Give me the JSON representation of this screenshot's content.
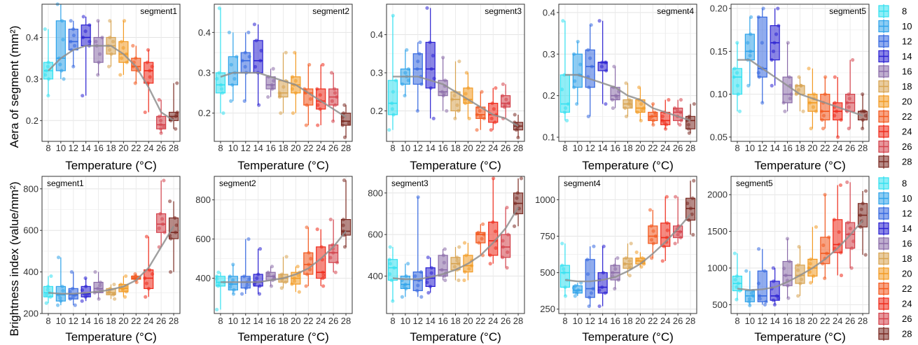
{
  "temperatures": [
    "8",
    "10",
    "12",
    "14",
    "16",
    "18",
    "20",
    "22",
    "24",
    "26",
    "28"
  ],
  "colors": [
    "#33e0f0",
    "#2fa3ea",
    "#3568e0",
    "#2a20d2",
    "#8a6ba8",
    "#d7a350",
    "#f29a22",
    "#f2581d",
    "#ef2a1a",
    "#d3414b",
    "#7a2a22"
  ],
  "xlabel": "Temperature (°C)",
  "row_labels": [
    "Aera of segment (mm²)",
    "Brightness index (value/mm²)"
  ],
  "legend_titles": [
    "",
    ""
  ],
  "chart_data": [
    {
      "type": "box",
      "row": 0,
      "segment": "segment1",
      "xlabel": "Temperature (°C)",
      "ylabel": "Aera of segment (mm²)",
      "ylim": [
        0.15,
        0.48
      ],
      "yticks": [
        0.2,
        0.3,
        0.4
      ],
      "ytick_labels": [
        "0.2",
        "0.3",
        "0.4"
      ],
      "medians": [
        0.32,
        0.35,
        0.39,
        0.4,
        0.38,
        0.38,
        0.36,
        0.33,
        0.32,
        0.19,
        0.21
      ],
      "q1": [
        0.3,
        0.32,
        0.37,
        0.38,
        0.34,
        0.36,
        0.34,
        0.32,
        0.29,
        0.18,
        0.2
      ],
      "q3": [
        0.34,
        0.44,
        0.42,
        0.43,
        0.4,
        0.4,
        0.39,
        0.35,
        0.34,
        0.21,
        0.22
      ],
      "wlo": [
        0.26,
        0.3,
        0.33,
        0.26,
        0.31,
        0.33,
        0.31,
        0.29,
        0.22,
        0.17,
        0.18
      ],
      "whi": [
        0.42,
        0.48,
        0.44,
        0.45,
        0.44,
        0.44,
        0.44,
        0.38,
        0.37,
        0.25,
        0.29
      ],
      "trend": [
        0.32,
        0.35,
        0.37,
        0.38,
        0.38,
        0.38,
        0.36,
        0.33,
        0.28,
        0.22,
        0.2
      ]
    },
    {
      "type": "box",
      "row": 0,
      "segment": "segment2",
      "xlabel": "Temperature (°C)",
      "ylabel": "",
      "ylim": [
        0.13,
        0.47
      ],
      "yticks": [
        0.2,
        0.3,
        0.4
      ],
      "ytick_labels": [
        "0.2",
        "0.3",
        "0.4"
      ],
      "medians": [
        0.27,
        0.3,
        0.33,
        0.33,
        0.27,
        0.25,
        0.27,
        0.25,
        0.23,
        0.24,
        0.18
      ],
      "q1": [
        0.25,
        0.27,
        0.3,
        0.3,
        0.26,
        0.24,
        0.25,
        0.22,
        0.21,
        0.22,
        0.17
      ],
      "q3": [
        0.3,
        0.34,
        0.35,
        0.38,
        0.29,
        0.28,
        0.29,
        0.26,
        0.26,
        0.26,
        0.2
      ],
      "wlo": [
        0.2,
        0.23,
        0.23,
        0.22,
        0.24,
        0.2,
        0.2,
        0.17,
        0.17,
        0.18,
        0.14
      ],
      "whi": [
        0.46,
        0.4,
        0.4,
        0.42,
        0.31,
        0.35,
        0.35,
        0.32,
        0.32,
        0.3,
        0.22
      ],
      "trend": [
        0.29,
        0.3,
        0.3,
        0.3,
        0.29,
        0.28,
        0.27,
        0.25,
        0.23,
        0.21,
        0.19
      ]
    },
    {
      "type": "box",
      "row": 0,
      "segment": "segment3",
      "xlabel": "Temperature (°C)",
      "ylabel": "",
      "ylim": [
        0.12,
        0.48
      ],
      "yticks": [
        0.2,
        0.3,
        0.4
      ],
      "ytick_labels": [
        "0.2",
        "0.3",
        "0.4"
      ],
      "medians": [
        0.22,
        0.29,
        0.31,
        0.31,
        0.25,
        0.23,
        0.23,
        0.19,
        0.19,
        0.22,
        0.16
      ],
      "q1": [
        0.19,
        0.27,
        0.27,
        0.26,
        0.24,
        0.2,
        0.22,
        0.18,
        0.17,
        0.21,
        0.15
      ],
      "q3": [
        0.28,
        0.31,
        0.35,
        0.38,
        0.28,
        0.25,
        0.26,
        0.21,
        0.22,
        0.24,
        0.17
      ],
      "wlo": [
        0.15,
        0.24,
        0.2,
        0.18,
        0.2,
        0.18,
        0.18,
        0.15,
        0.15,
        0.18,
        0.13
      ],
      "whi": [
        0.45,
        0.36,
        0.38,
        0.47,
        0.34,
        0.33,
        0.3,
        0.25,
        0.26,
        0.27,
        0.19
      ],
      "trend": [
        0.29,
        0.29,
        0.29,
        0.28,
        0.27,
        0.25,
        0.23,
        0.21,
        0.19,
        0.18,
        0.16
      ]
    },
    {
      "type": "box",
      "row": 0,
      "segment": "segment4",
      "xlabel": "Temperature (°C)",
      "ylabel": "",
      "ylim": [
        0.09,
        0.42
      ],
      "yticks": [
        0.1,
        0.2,
        0.3,
        0.4
      ],
      "ytick_labels": [
        "0.1",
        "0.2",
        "0.3",
        "0.4"
      ],
      "medians": [
        0.18,
        0.25,
        0.27,
        0.28,
        0.2,
        0.18,
        0.17,
        0.15,
        0.14,
        0.16,
        0.14
      ],
      "q1": [
        0.16,
        0.22,
        0.22,
        0.26,
        0.19,
        0.17,
        0.16,
        0.14,
        0.13,
        0.14,
        0.12
      ],
      "q3": [
        0.25,
        0.3,
        0.31,
        0.28,
        0.22,
        0.19,
        0.19,
        0.16,
        0.16,
        0.17,
        0.15
      ],
      "wlo": [
        0.14,
        0.18,
        0.15,
        0.18,
        0.17,
        0.15,
        0.14,
        0.13,
        0.12,
        0.13,
        0.11
      ],
      "whi": [
        0.38,
        0.33,
        0.37,
        0.38,
        0.27,
        0.23,
        0.22,
        0.18,
        0.19,
        0.19,
        0.18
      ],
      "trend": [
        0.25,
        0.25,
        0.24,
        0.23,
        0.22,
        0.2,
        0.19,
        0.17,
        0.16,
        0.15,
        0.14
      ]
    },
    {
      "type": "box",
      "row": 0,
      "segment": "segment5",
      "xlabel": "Temperature (°C)",
      "ylabel": "",
      "ylim": [
        0.045,
        0.205
      ],
      "yticks": [
        0.05,
        0.1,
        0.15,
        0.2
      ],
      "ytick_labels": [
        "0.05",
        "0.10",
        "0.15",
        "0.20"
      ],
      "medians": [
        0.12,
        0.15,
        0.13,
        0.16,
        0.1,
        0.11,
        0.09,
        0.08,
        0.08,
        0.09,
        0.08
      ],
      "q1": [
        0.1,
        0.14,
        0.12,
        0.14,
        0.09,
        0.1,
        0.08,
        0.07,
        0.07,
        0.08,
        0.07
      ],
      "q3": [
        0.13,
        0.17,
        0.19,
        0.18,
        0.12,
        0.11,
        0.1,
        0.1,
        0.09,
        0.1,
        0.08
      ],
      "wlo": [
        0.08,
        0.11,
        0.09,
        0.11,
        0.08,
        0.08,
        0.06,
        0.06,
        0.05,
        0.06,
        0.06
      ],
      "whi": [
        0.16,
        0.19,
        0.2,
        0.2,
        0.16,
        0.12,
        0.13,
        0.12,
        0.12,
        0.14,
        0.1
      ],
      "trend": [
        0.14,
        0.14,
        0.13,
        0.12,
        0.11,
        0.1,
        0.095,
        0.09,
        0.085,
        0.08,
        0.075
      ]
    },
    {
      "type": "box",
      "row": 1,
      "segment": "segment1",
      "xlabel": "Temperature (°C)",
      "ylabel": "Brightness index (value/mm²)",
      "ylim": [
        200,
        860
      ],
      "yticks": [
        200,
        400,
        600,
        800
      ],
      "ytick_labels": [
        "200",
        "400",
        "600",
        "800"
      ],
      "medians": [
        300,
        290,
        290,
        295,
        320,
        300,
        320,
        370,
        370,
        630,
        590
      ],
      "q1": [
        280,
        260,
        270,
        280,
        300,
        290,
        305,
        365,
        320,
        590,
        560
      ],
      "q3": [
        330,
        330,
        320,
        330,
        350,
        320,
        340,
        380,
        410,
        680,
        660
      ],
      "wlo": [
        250,
        240,
        240,
        260,
        270,
        270,
        280,
        350,
        280,
        520,
        400
      ],
      "whi": [
        380,
        470,
        400,
        370,
        400,
        340,
        380,
        390,
        570,
        840,
        740
      ],
      "trend": [
        300,
        295,
        295,
        300,
        305,
        315,
        330,
        360,
        420,
        520,
        620
      ]
    },
    {
      "type": "box",
      "row": 1,
      "segment": "segment2",
      "xlabel": "Temperature (°C)",
      "ylabel": "",
      "ylim": [
        220,
        920
      ],
      "yticks": [
        400,
        600,
        800
      ],
      "ytick_labels": [
        "400",
        "600",
        "800"
      ],
      "medians": [
        380,
        370,
        380,
        380,
        410,
        400,
        400,
        470,
        430,
        530,
        640
      ],
      "q1": [
        360,
        340,
        350,
        360,
        390,
        380,
        370,
        420,
        400,
        480,
        620
      ],
      "q3": [
        410,
        410,
        410,
        420,
        430,
        420,
        430,
        530,
        560,
        570,
        700
      ],
      "wlo": [
        240,
        320,
        320,
        320,
        360,
        350,
        330,
        360,
        360,
        430,
        560
      ],
      "whi": [
        430,
        470,
        600,
        550,
        460,
        510,
        460,
        660,
        650,
        700,
        900
      ],
      "trend": [
        380,
        380,
        380,
        380,
        390,
        400,
        420,
        450,
        500,
        560,
        640
      ]
    },
    {
      "type": "box",
      "row": 1,
      "segment": "segment3",
      "xlabel": "Temperature (°C)",
      "ylabel": "",
      "ylim": [
        220,
        880
      ],
      "yticks": [
        400,
        600,
        800
      ],
      "ytick_labels": [
        "400",
        "600",
        "800"
      ],
      "medians": [
        440,
        360,
        380,
        390,
        430,
        460,
        450,
        600,
        570,
        540,
        750
      ],
      "q1": [
        380,
        340,
        330,
        350,
        400,
        430,
        420,
        560,
        500,
        490,
        700
      ],
      "q3": [
        480,
        400,
        420,
        440,
        500,
        490,
        500,
        610,
        660,
        600,
        800
      ],
      "wlo": [
        280,
        300,
        300,
        320,
        380,
        380,
        380,
        500,
        460,
        440,
        640
      ],
      "whi": [
        540,
        460,
        780,
        490,
        530,
        540,
        560,
        650,
        870,
        730,
        870
      ],
      "trend": [
        390,
        385,
        385,
        395,
        410,
        430,
        460,
        500,
        560,
        630,
        730
      ]
    },
    {
      "type": "box",
      "row": 1,
      "segment": "segment4",
      "xlabel": "Temperature (°C)",
      "ylabel": "",
      "ylim": [
        220,
        1160
      ],
      "yticks": [
        250,
        500,
        750,
        1000
      ],
      "ytick_labels": [
        "250",
        "500",
        "750",
        "1000"
      ],
      "medians": [
        500,
        380,
        390,
        400,
        500,
        560,
        580,
        750,
        740,
        780,
        940
      ],
      "q1": [
        400,
        360,
        330,
        360,
        450,
        530,
        560,
        700,
        680,
        740,
        860
      ],
      "q3": [
        550,
        410,
        590,
        500,
        550,
        600,
        600,
        820,
        840,
        820,
        1010
      ],
      "wlo": [
        340,
        340,
        270,
        270,
        390,
        480,
        540,
        600,
        580,
        700,
        760
      ],
      "whi": [
        700,
        430,
        680,
        680,
        600,
        700,
        640,
        930,
        1020,
        1020,
        1130
      ],
      "trend": [
        450,
        440,
        440,
        450,
        470,
        510,
        560,
        630,
        710,
        800,
        900
      ]
    },
    {
      "type": "box",
      "row": 1,
      "segment": "segment5",
      "xlabel": "Temperature (°C)",
      "ylabel": "",
      "ylim": [
        380,
        2250
      ],
      "yticks": [
        500,
        1000,
        1500,
        2000
      ],
      "ytick_labels": [
        "500",
        "1000",
        "1500",
        "2000"
      ],
      "medians": [
        790,
        620,
        620,
        620,
        900,
        900,
        1000,
        1200,
        1320,
        1460,
        1720
      ],
      "q1": [
        690,
        540,
        540,
        560,
        760,
        790,
        890,
        1060,
        1210,
        1270,
        1560
      ],
      "q3": [
        890,
        690,
        960,
        820,
        1090,
        1040,
        1120,
        1420,
        1660,
        1620,
        1880
      ],
      "wlo": [
        570,
        490,
        500,
        500,
        590,
        620,
        800,
        860,
        900,
        1000,
        1180
      ],
      "whi": [
        1200,
        960,
        1260,
        1000,
        1400,
        1290,
        1560,
        2000,
        2130,
        2170,
        2050
      ],
      "trend": [
        720,
        700,
        710,
        740,
        810,
        900,
        1000,
        1120,
        1270,
        1450,
        1650
      ]
    }
  ]
}
